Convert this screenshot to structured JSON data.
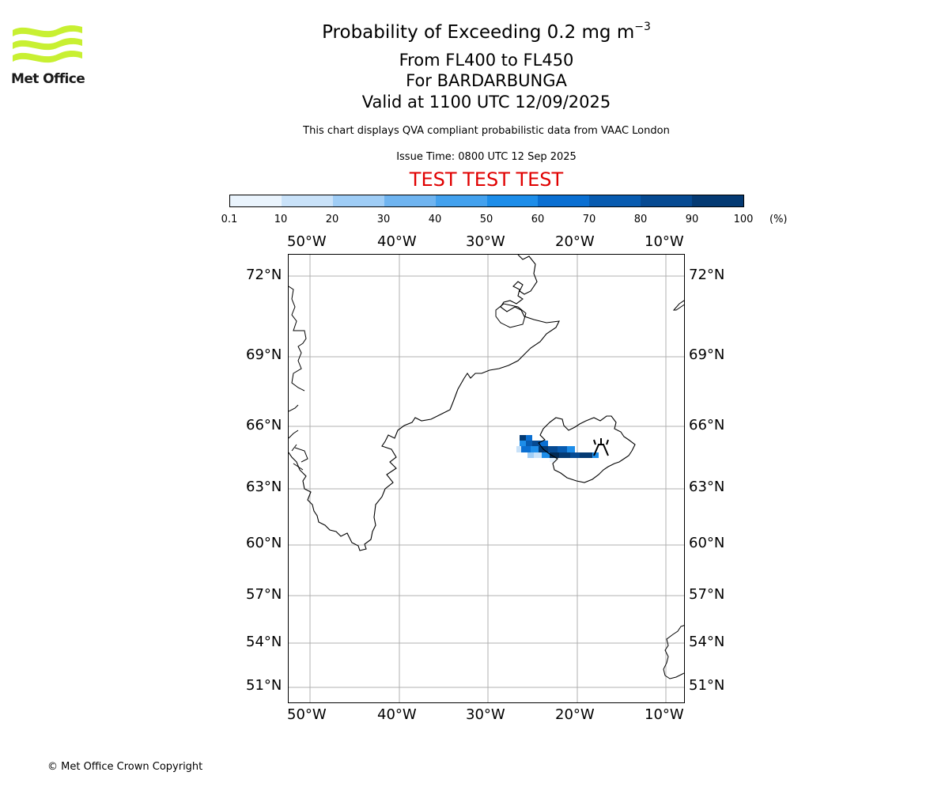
{
  "logo": {
    "text": "Met Office",
    "color": "#c8f032"
  },
  "header": {
    "title_main": "Probability of Exceeding 0.2 mg m",
    "title_exp": "−3",
    "level_range": "From FL400 to FL450",
    "volcano": "For BARDARBUNGA",
    "valid": "Valid at 1100 UTC 12/09/2025",
    "description": "This chart displays QVA compliant probabilistic data from VAAC London",
    "issue_time": "Issue Time: 0800 UTC 12 Sep 2025",
    "test_banner": "TEST TEST TEST"
  },
  "colorbar": {
    "ticks": [
      "0.1",
      "10",
      "20",
      "30",
      "40",
      "50",
      "60",
      "70",
      "80",
      "90",
      "100"
    ],
    "unit": "(%)",
    "colors": [
      "#eaf4fd",
      "#c9e2f9",
      "#9fcdf6",
      "#6fb4f0",
      "#43a1ee",
      "#1d8de9",
      "#0a6fd2",
      "#085bb0",
      "#064a92",
      "#043a73",
      "#022a55"
    ]
  },
  "map": {
    "lon_ticks": [
      "50°W",
      "40°W",
      "30°W",
      "20°W",
      "10°W"
    ],
    "lat_ticks": [
      "72°N",
      "69°N",
      "66°N",
      "63°N",
      "60°N",
      "57°N",
      "54°N",
      "51°N"
    ],
    "gridline_color": "#b0b0b0",
    "volcano_symbol": "volcano-icon"
  },
  "footer": {
    "copyright": "© Met Office Crown Copyright"
  }
}
